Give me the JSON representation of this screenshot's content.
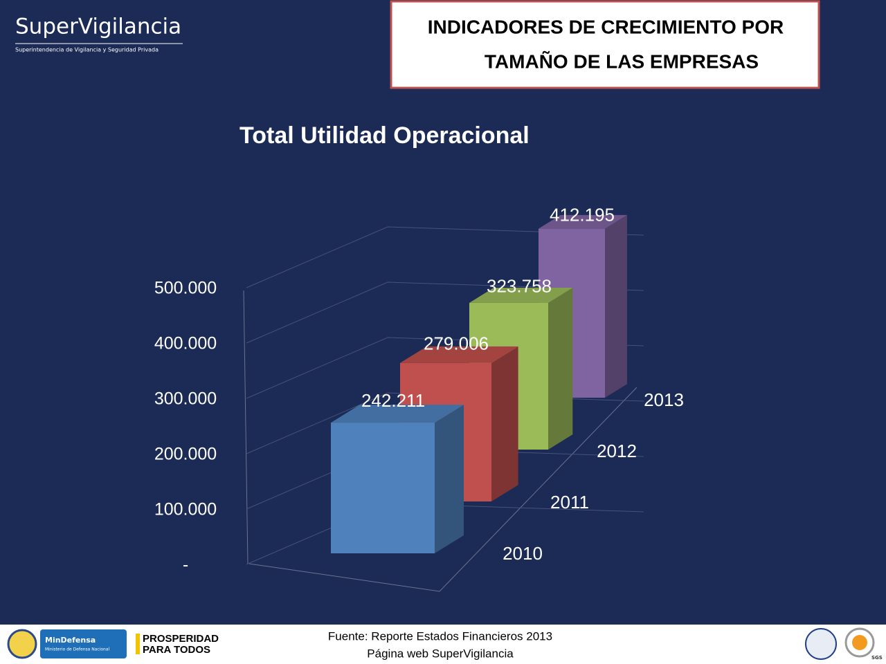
{
  "brand": {
    "name": "SuperVigilancia",
    "tagline": "Superintendencia de Vigilancia y Seguridad Privada"
  },
  "header": {
    "line1": "INDICADORES DE CRECIMIENTO POR",
    "line2": "TAMAÑO DE LAS EMPRESAS"
  },
  "chart_data": {
    "type": "bar3d",
    "title": "Total Utilidad Operacional",
    "categories": [
      "2010",
      "2011",
      "2012",
      "2013"
    ],
    "values": [
      242211,
      279006,
      323758,
      412195
    ],
    "value_labels": [
      "242.211",
      "279.006",
      "323.758",
      "412.195"
    ],
    "colors": [
      "#4f81bd",
      "#c0504d",
      "#9bbb59",
      "#8064a2"
    ],
    "ylim": [
      0,
      500000
    ],
    "yticks": [
      {
        "value": 0,
        "label": "-"
      },
      {
        "value": 100000,
        "label": "100.000"
      },
      {
        "value": 200000,
        "label": "200.000"
      },
      {
        "value": 300000,
        "label": "300.000"
      },
      {
        "value": 400000,
        "label": "400.000"
      },
      {
        "value": 500000,
        "label": "500.000"
      }
    ],
    "grid": true
  },
  "footer": {
    "source": "Fuente: Reporte Estados Financieros 2013",
    "web": "Página web SuperVigilancia",
    "ministry": "MinDefensa",
    "ministry_sub": "Ministerio de Defensa Nacional",
    "slogan1": "PROSPERIDAD",
    "slogan2": "PARA TODOS",
    "cert": "SGS"
  }
}
